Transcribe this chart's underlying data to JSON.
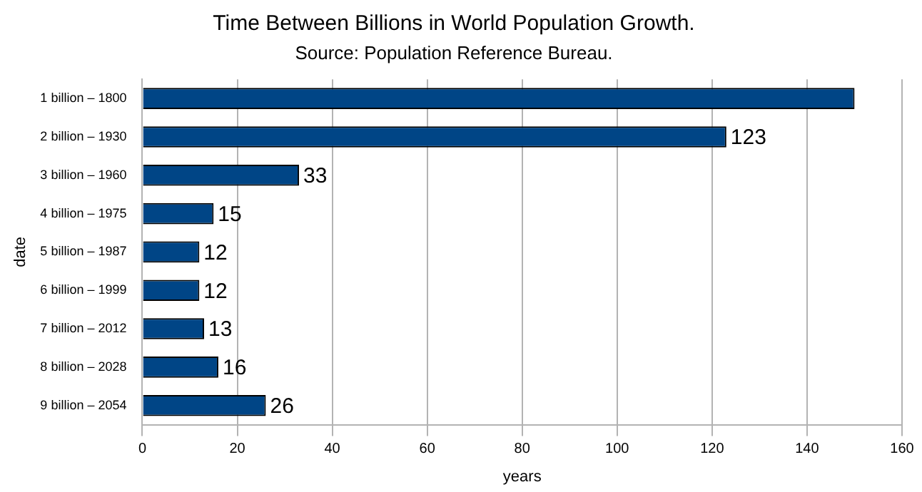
{
  "chart_data": {
    "type": "bar",
    "orientation": "horizontal",
    "title": "Time Between Billions in World Population Growth.",
    "subtitle": "Source: Population Reference Bureau.",
    "xlabel": "years",
    "ylabel": "date",
    "categories": [
      "1 billion – 1800",
      "2 billion – 1930",
      "3 billion – 1960",
      "4 billion – 1975",
      "5 billion – 1987",
      "6 billion – 1999",
      "7 billion – 2012",
      "8 billion – 2028",
      "9 billion – 2054"
    ],
    "values": [
      150,
      123,
      33,
      15,
      12,
      12,
      13,
      16,
      26
    ],
    "value_labels": [
      null,
      "123",
      "33",
      "15",
      "12",
      "12",
      "13",
      "16",
      "26"
    ],
    "color": "#004586",
    "xlim": [
      0,
      160
    ],
    "xticks": [
      0,
      20,
      40,
      60,
      80,
      100,
      120,
      140,
      160
    ],
    "grid": "x",
    "legend": false
  }
}
